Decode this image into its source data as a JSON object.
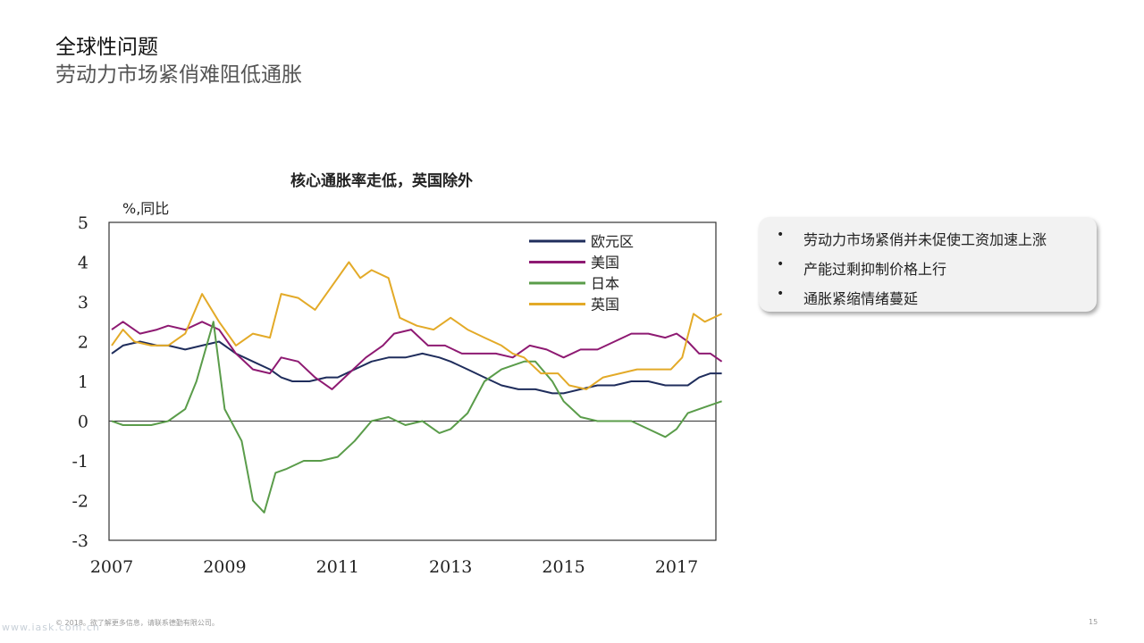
{
  "slide": {
    "title": "全球性问题",
    "subtitle": "劳动力市场紧俏难阻低通胀",
    "footer": "© 2018。欲了解更多信息，请联系德勤有限公司。",
    "watermark": "www.iask.com.cn",
    "page_number": "15"
  },
  "callout": {
    "bullets": [
      "劳动力市场紧俏并未促使工资加速上涨",
      "产能过剩抑制价格上行",
      "通胀紧缩情绪蔓延"
    ]
  },
  "chart_data": {
    "type": "line",
    "title": "核心通胀率走低，英国除外",
    "ylabel": "%,同比",
    "xlabel": "",
    "ylim": [
      -3,
      5
    ],
    "xlim": [
      2007,
      2017.8
    ],
    "yticks": [
      "5",
      "4",
      "3",
      "2",
      "1",
      "0",
      "-1",
      "-2",
      "-3"
    ],
    "xticks": [
      "2007",
      "2009",
      "2011",
      "2013",
      "2015",
      "2017"
    ],
    "grid": false,
    "legend_position": "top-right",
    "series": [
      {
        "name": "欧元区",
        "color": "#1f2d5c",
        "x": [
          2007.0,
          2007.2,
          2007.5,
          2007.8,
          2008.0,
          2008.3,
          2008.6,
          2008.9,
          2009.2,
          2009.5,
          2009.8,
          2010.0,
          2010.2,
          2010.5,
          2010.8,
          2011.0,
          2011.3,
          2011.6,
          2011.9,
          2012.2,
          2012.5,
          2012.8,
          2013.0,
          2013.3,
          2013.6,
          2013.9,
          2014.2,
          2014.5,
          2014.8,
          2015.0,
          2015.3,
          2015.6,
          2015.9,
          2016.2,
          2016.5,
          2016.8,
          2017.0,
          2017.2,
          2017.4,
          2017.6,
          2017.8
        ],
        "y": [
          1.7,
          1.9,
          2.0,
          1.9,
          1.9,
          1.8,
          1.9,
          2.0,
          1.7,
          1.5,
          1.3,
          1.1,
          1.0,
          1.0,
          1.1,
          1.1,
          1.3,
          1.5,
          1.6,
          1.6,
          1.7,
          1.6,
          1.5,
          1.3,
          1.1,
          0.9,
          0.8,
          0.8,
          0.7,
          0.7,
          0.8,
          0.9,
          0.9,
          1.0,
          1.0,
          0.9,
          0.9,
          0.9,
          1.1,
          1.2,
          1.2
        ]
      },
      {
        "name": "美国",
        "color": "#8e1a72",
        "x": [
          2007.0,
          2007.2,
          2007.5,
          2007.8,
          2008.0,
          2008.3,
          2008.6,
          2008.9,
          2009.2,
          2009.5,
          2009.8,
          2010.0,
          2010.3,
          2010.6,
          2010.9,
          2011.2,
          2011.5,
          2011.8,
          2012.0,
          2012.3,
          2012.6,
          2012.9,
          2013.2,
          2013.5,
          2013.8,
          2014.1,
          2014.4,
          2014.7,
          2015.0,
          2015.3,
          2015.6,
          2015.9,
          2016.2,
          2016.5,
          2016.8,
          2017.0,
          2017.2,
          2017.4,
          2017.6,
          2017.8
        ],
        "y": [
          2.3,
          2.5,
          2.2,
          2.3,
          2.4,
          2.3,
          2.5,
          2.3,
          1.7,
          1.3,
          1.2,
          1.6,
          1.5,
          1.1,
          0.8,
          1.2,
          1.6,
          1.9,
          2.2,
          2.3,
          1.9,
          1.9,
          1.7,
          1.7,
          1.7,
          1.6,
          1.9,
          1.8,
          1.6,
          1.8,
          1.8,
          2.0,
          2.2,
          2.2,
          2.1,
          2.2,
          2.0,
          1.7,
          1.7,
          1.5
        ]
      },
      {
        "name": "日本",
        "color": "#5a9c4a",
        "x": [
          2007.0,
          2007.2,
          2007.4,
          2007.7,
          2008.0,
          2008.3,
          2008.5,
          2008.8,
          2009.0,
          2009.3,
          2009.5,
          2009.7,
          2009.9,
          2010.1,
          2010.4,
          2010.7,
          2011.0,
          2011.3,
          2011.6,
          2011.9,
          2012.2,
          2012.5,
          2012.8,
          2013.0,
          2013.3,
          2013.6,
          2013.9,
          2014.1,
          2014.3,
          2014.5,
          2014.8,
          2015.0,
          2015.3,
          2015.6,
          2015.9,
          2016.2,
          2016.5,
          2016.8,
          2017.0,
          2017.2,
          2017.4,
          2017.6,
          2017.8
        ],
        "y": [
          0.0,
          -0.1,
          -0.1,
          -0.1,
          0.0,
          0.3,
          1.0,
          2.5,
          0.3,
          -0.5,
          -2.0,
          -2.3,
          -1.3,
          -1.2,
          -1.0,
          -1.0,
          -0.9,
          -0.5,
          0.0,
          0.1,
          -0.1,
          0.0,
          -0.3,
          -0.2,
          0.2,
          1.0,
          1.3,
          1.4,
          1.5,
          1.5,
          1.0,
          0.5,
          0.1,
          0.0,
          0.0,
          0.0,
          -0.2,
          -0.4,
          -0.2,
          0.2,
          0.3,
          0.4,
          0.5
        ]
      },
      {
        "name": "英国",
        "color": "#e3aa28",
        "x": [
          2007.0,
          2007.2,
          2007.4,
          2007.7,
          2008.0,
          2008.3,
          2008.6,
          2008.9,
          2009.2,
          2009.5,
          2009.8,
          2010.0,
          2010.3,
          2010.6,
          2010.9,
          2011.2,
          2011.4,
          2011.6,
          2011.9,
          2012.1,
          2012.4,
          2012.7,
          2013.0,
          2013.3,
          2013.6,
          2013.9,
          2014.1,
          2014.3,
          2014.6,
          2014.9,
          2015.1,
          2015.4,
          2015.7,
          2016.0,
          2016.3,
          2016.6,
          2016.9,
          2017.1,
          2017.3,
          2017.5,
          2017.8
        ],
        "y": [
          1.9,
          2.3,
          2.0,
          1.9,
          1.9,
          2.2,
          3.2,
          2.5,
          1.9,
          2.2,
          2.1,
          3.2,
          3.1,
          2.8,
          3.4,
          4.0,
          3.6,
          3.8,
          3.6,
          2.6,
          2.4,
          2.3,
          2.6,
          2.3,
          2.1,
          1.9,
          1.7,
          1.6,
          1.2,
          1.2,
          0.9,
          0.8,
          1.1,
          1.2,
          1.3,
          1.3,
          1.3,
          1.6,
          2.7,
          2.5,
          2.7
        ]
      }
    ]
  }
}
